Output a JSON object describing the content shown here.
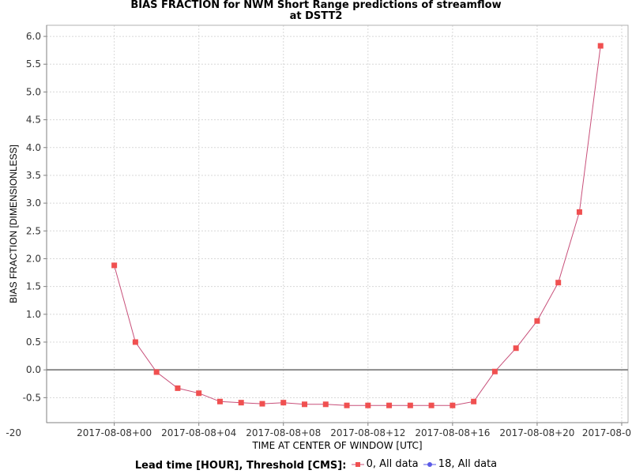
{
  "chart_data": {
    "type": "line",
    "title": "BIAS FRACTION for NWM Short Range predictions of streamflow",
    "subtitle": "at DSTT2",
    "xlabel": "TIME AT CENTER OF WINDOW [UTC]",
    "ylabel": "BIAS FRACTION [DIMENSIONLESS]",
    "ylim": [
      -0.95,
      6.2
    ],
    "y_ticks": [
      "-0.5",
      "0.0",
      "0.5",
      "1.0",
      "1.5",
      "2.0",
      "2.5",
      "3.0",
      "3.5",
      "4.0",
      "4.5",
      "5.0",
      "5.5",
      "6.0"
    ],
    "y_tick_values": [
      -0.5,
      0.0,
      0.5,
      1.0,
      1.5,
      2.0,
      2.5,
      3.0,
      3.5,
      4.0,
      4.5,
      5.0,
      5.5,
      6.0
    ],
    "x_tick_labels": [
      "-20",
      "2017-08-08+00",
      "2017-08-08+04",
      "2017-08-08+08",
      "2017-08-08+12",
      "2017-08-08+16",
      "2017-08-08+20",
      "2017-08-0"
    ],
    "x_tick_values": [
      -4,
      0,
      4,
      8,
      12,
      16,
      20,
      24
    ],
    "xlim": [
      -3.2,
      24.3
    ],
    "grid": true,
    "legend_position": "bottom",
    "legend_title": "Lead time [HOUR], Threshold [CMS]:",
    "series": [
      {
        "name": "0, All data",
        "color": "#f05050",
        "line_color": "#c8507a",
        "marker": "square",
        "x": [
          0,
          1,
          2,
          3,
          4,
          5,
          6,
          7,
          8,
          9,
          10,
          11,
          12,
          13,
          14,
          15,
          16,
          17,
          18,
          19,
          20,
          21,
          22,
          23
        ],
        "y": [
          1.88,
          0.5,
          -0.04,
          -0.33,
          -0.42,
          -0.57,
          -0.59,
          -0.61,
          -0.59,
          -0.62,
          -0.62,
          -0.64,
          -0.64,
          -0.64,
          -0.64,
          -0.64,
          -0.64,
          -0.57,
          -0.03,
          0.39,
          0.88,
          1.57,
          2.84,
          5.83
        ]
      },
      {
        "name": "18, All data",
        "color": "#5a5ae6",
        "marker": "circle",
        "x": [],
        "y": []
      }
    ]
  }
}
